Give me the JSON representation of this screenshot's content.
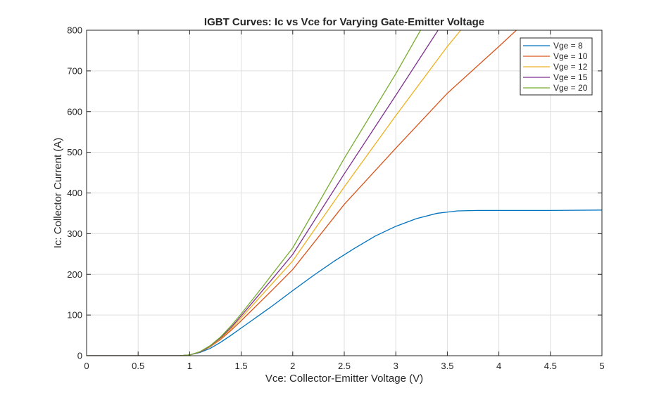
{
  "chart_data": {
    "type": "line",
    "title": "IGBT Curves: Ic vs Vce for Varying Gate-Emitter Voltage",
    "xlabel": "Vce: Collector-Emitter Voltage (V)",
    "ylabel": "Ic: Collector Current (A)",
    "xlim": [
      0,
      5
    ],
    "ylim": [
      0,
      800
    ],
    "xticks": [
      0,
      0.5,
      1,
      1.5,
      2,
      2.5,
      3,
      3.5,
      4,
      4.5,
      5
    ],
    "xtick_labels": [
      "0",
      "0.5",
      "1",
      "1.5",
      "2",
      "2.5",
      "3",
      "3.5",
      "4",
      "4.5",
      "5"
    ],
    "yticks": [
      0,
      100,
      200,
      300,
      400,
      500,
      600,
      700,
      800
    ],
    "ytick_labels": [
      "0",
      "100",
      "200",
      "300",
      "400",
      "500",
      "600",
      "700",
      "800"
    ],
    "grid": true,
    "legend_position": "top-right",
    "series": [
      {
        "name": "Vge = 8",
        "color": "#0072BD",
        "x": [
          0,
          0.9,
          1.0,
          1.1,
          1.2,
          1.3,
          1.4,
          1.5,
          1.6,
          1.7,
          1.8,
          1.9,
          2.0,
          2.2,
          2.4,
          2.6,
          2.8,
          3.0,
          3.2,
          3.4,
          3.6,
          3.8,
          4.0,
          4.5,
          5.0
        ],
        "y": [
          0,
          0,
          2,
          8,
          18,
          33,
          50,
          68,
          86,
          104,
          122,
          141,
          160,
          197,
          232,
          264,
          294,
          318,
          337,
          350,
          356,
          357,
          357,
          357,
          358
        ]
      },
      {
        "name": "Vge = 10",
        "color": "#D95319",
        "x": [
          0,
          0.9,
          1.0,
          1.1,
          1.2,
          1.3,
          1.4,
          1.5,
          1.6,
          1.7,
          1.8,
          2.0,
          2.5,
          3.0,
          3.5,
          4.0,
          4.17
        ],
        "y": [
          0,
          0,
          2,
          9,
          22,
          40,
          62,
          86,
          111,
          136,
          161,
          212,
          372,
          510,
          645,
          760,
          800
        ]
      },
      {
        "name": "Vge = 12",
        "color": "#EDB120",
        "x": [
          0,
          0.9,
          1.0,
          1.1,
          1.2,
          1.3,
          1.4,
          1.5,
          1.6,
          1.7,
          1.8,
          2.0,
          2.5,
          3.0,
          3.5,
          3.63
        ],
        "y": [
          0,
          0,
          2,
          9,
          23,
          42,
          66,
          93,
          121,
          149,
          177,
          233,
          415,
          590,
          760,
          800
        ]
      },
      {
        "name": "Vge = 15",
        "color": "#7E2F8E",
        "x": [
          0,
          0.9,
          1.0,
          1.1,
          1.2,
          1.3,
          1.4,
          1.5,
          1.6,
          1.7,
          1.8,
          2.0,
          2.5,
          3.0,
          3.41
        ],
        "y": [
          0,
          0,
          2,
          9,
          24,
          44,
          69,
          98,
          128,
          158,
          188,
          249,
          447,
          640,
          800
        ]
      },
      {
        "name": "Vge = 20",
        "color": "#77AC30",
        "x": [
          0,
          0.9,
          1.0,
          1.1,
          1.2,
          1.3,
          1.4,
          1.5,
          1.6,
          1.7,
          1.8,
          2.0,
          2.5,
          3.0,
          3.24
        ],
        "y": [
          0,
          0,
          2,
          10,
          25,
          46,
          73,
          103,
          135,
          167,
          200,
          265,
          485,
          693,
          800
        ]
      }
    ]
  }
}
